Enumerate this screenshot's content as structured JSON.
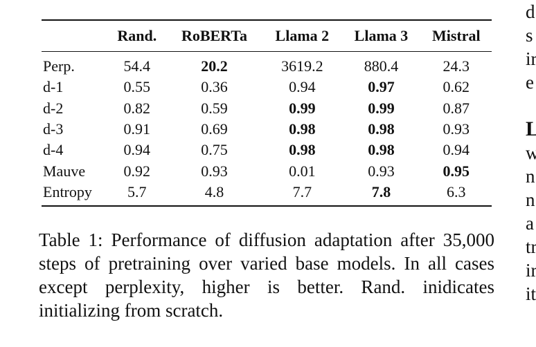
{
  "table": {
    "columns": [
      "",
      "Rand.",
      "RoBERTa",
      "Llama 2",
      "Llama 3",
      "Mistral"
    ],
    "rows": [
      {
        "label": "Perp.",
        "values": [
          "54.4",
          "20.2",
          "3619.2",
          "880.4",
          "24.3"
        ],
        "bold": [
          false,
          true,
          false,
          false,
          false
        ]
      },
      {
        "label": "d-1",
        "values": [
          "0.55",
          "0.36",
          "0.94",
          "0.97",
          "0.62"
        ],
        "bold": [
          false,
          false,
          false,
          true,
          false
        ]
      },
      {
        "label": "d-2",
        "values": [
          "0.82",
          "0.59",
          "0.99",
          "0.99",
          "0.87"
        ],
        "bold": [
          false,
          false,
          true,
          true,
          false
        ]
      },
      {
        "label": "d-3",
        "values": [
          "0.91",
          "0.69",
          "0.98",
          "0.98",
          "0.93"
        ],
        "bold": [
          false,
          false,
          true,
          true,
          false
        ]
      },
      {
        "label": "d-4",
        "values": [
          "0.94",
          "0.75",
          "0.98",
          "0.98",
          "0.94"
        ],
        "bold": [
          false,
          false,
          true,
          true,
          false
        ]
      },
      {
        "label": "Mauve",
        "values": [
          "0.92",
          "0.93",
          "0.01",
          "0.93",
          "0.95"
        ],
        "bold": [
          false,
          false,
          false,
          false,
          true
        ]
      },
      {
        "label": "Entropy",
        "values": [
          "5.7",
          "4.8",
          "7.7",
          "7.8",
          "6.3"
        ],
        "bold": [
          false,
          false,
          false,
          true,
          false
        ]
      }
    ]
  },
  "caption": "Table 1:  Performance of diffusion adaptation after 35,000 steps of pretraining over varied base models. In all cases except perplexity, higher is better.  Rand. inidicates initializing from scratch.",
  "adjacent_column_fragments": [
    "d",
    "s",
    "ir",
    "e",
    "",
    "L",
    "w",
    "n",
    "n",
    "a",
    "tr",
    "ir",
    "it"
  ]
}
